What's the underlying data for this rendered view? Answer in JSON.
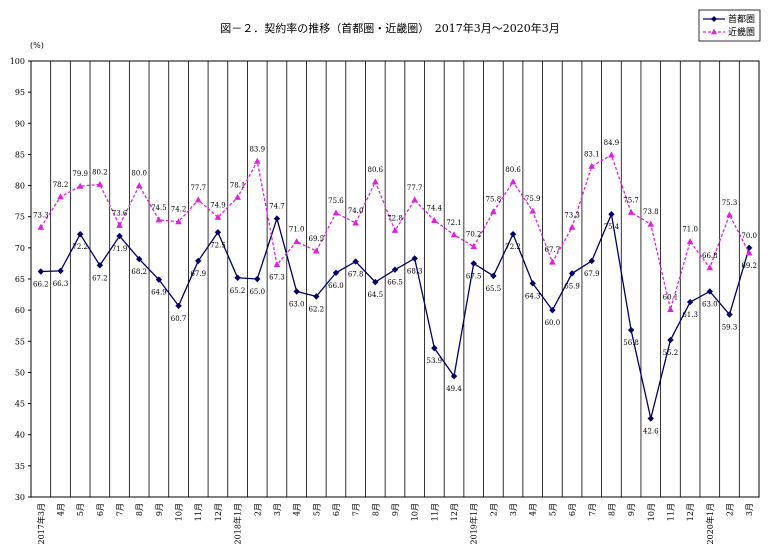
{
  "chart_data": {
    "type": "line",
    "title": "図－２．契約率の推移（首都圏・近畿圏）　2017年3月～2020年3月",
    "ylabel": "(%)",
    "ylim": [
      30,
      100
    ],
    "yticks": [
      30,
      35,
      40,
      45,
      50,
      55,
      60,
      65,
      70,
      75,
      80,
      85,
      90,
      95,
      100
    ],
    "grid": "vertical",
    "legend_position": "top-right",
    "categories": [
      "2017年3月",
      "4月",
      "5月",
      "6月",
      "7月",
      "8月",
      "9月",
      "10月",
      "11月",
      "12月",
      "2018年1月",
      "2月",
      "3月",
      "4月",
      "5月",
      "6月",
      "7月",
      "8月",
      "9月",
      "10月",
      "11月",
      "12月",
      "2019年1月",
      "2月",
      "3月",
      "4月",
      "5月",
      "6月",
      "7月",
      "8月",
      "9月",
      "10月",
      "11月",
      "12月",
      "2020年1月",
      "2月",
      "3月"
    ],
    "series": [
      {
        "name": "首都圏",
        "color": "#000066",
        "marker": "diamond",
        "line": "solid",
        "values": [
          66.2,
          66.3,
          72.2,
          67.2,
          71.9,
          68.2,
          64.9,
          60.7,
          67.9,
          72.5,
          65.2,
          65.0,
          74.7,
          63.0,
          62.2,
          66.0,
          67.8,
          64.5,
          66.5,
          68.3,
          53.9,
          49.4,
          67.5,
          65.5,
          72.2,
          64.3,
          60.0,
          65.9,
          67.9,
          75.4,
          56.8,
          42.6,
          55.2,
          61.3,
          63.0,
          59.3,
          70.0
        ]
      },
      {
        "name": "近畿圏",
        "color": "#e020e0",
        "marker": "triangle",
        "line": "dashed",
        "values": [
          73.3,
          78.2,
          79.9,
          80.2,
          73.6,
          80.0,
          74.5,
          74.2,
          77.7,
          74.9,
          78.1,
          83.9,
          67.3,
          71.0,
          69.5,
          75.6,
          74.0,
          80.6,
          72.8,
          77.7,
          74.4,
          72.1,
          70.2,
          75.8,
          80.6,
          75.9,
          67.7,
          73.3,
          83.1,
          84.9,
          75.7,
          73.8,
          60.1,
          71.0,
          66.8,
          75.3,
          69.2
        ]
      }
    ]
  }
}
